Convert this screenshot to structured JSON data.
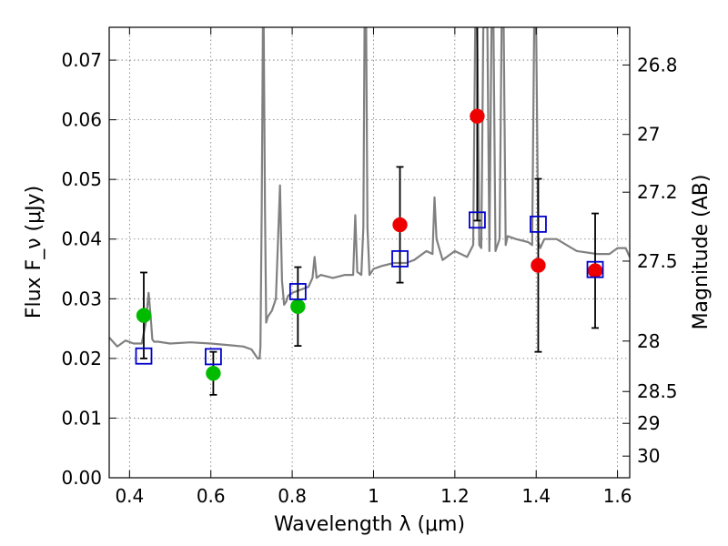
{
  "chart_data": {
    "type": "scatter",
    "title": "",
    "xlabel": "Wavelength λ (μm)",
    "ylabel": "Flux F_ν (μJy)",
    "y2label": "Magnitude (AB)",
    "xlim": [
      0.35,
      1.63
    ],
    "ylim": [
      0.0,
      0.0755
    ],
    "xticks": [
      {
        "value": 0.4,
        "label": "0.4"
      },
      {
        "value": 0.6,
        "label": "0.6"
      },
      {
        "value": 0.8,
        "label": "0.8"
      },
      {
        "value": 1.0,
        "label": "1"
      },
      {
        "value": 1.2,
        "label": "1.2"
      },
      {
        "value": 1.4,
        "label": "1.4"
      },
      {
        "value": 1.6,
        "label": "1.6"
      }
    ],
    "yticks": [
      {
        "value": 0.0,
        "label": "0.00"
      },
      {
        "value": 0.01,
        "label": "0.01"
      },
      {
        "value": 0.02,
        "label": "0.02"
      },
      {
        "value": 0.03,
        "label": "0.03"
      },
      {
        "value": 0.04,
        "label": "0.04"
      },
      {
        "value": 0.05,
        "label": "0.05"
      },
      {
        "value": 0.06,
        "label": "0.06"
      },
      {
        "value": 0.07,
        "label": "0.07"
      }
    ],
    "y2ticks": [
      {
        "mag": 26.8,
        "label": "26.8"
      },
      {
        "mag": 27.0,
        "label": "27"
      },
      {
        "mag": 27.2,
        "label": "27.2"
      },
      {
        "mag": 27.5,
        "label": "27.5"
      },
      {
        "mag": 28.0,
        "label": "28"
      },
      {
        "mag": 28.5,
        "label": "28.5"
      },
      {
        "mag": 29.0,
        "label": "29"
      },
      {
        "mag": 30.0,
        "label": "30"
      }
    ],
    "grid": true,
    "colors": {
      "spectrum": "#808080",
      "green": "#00bb00",
      "red": "#ee0000",
      "model": "#0000cc",
      "errorbar": "#000000"
    },
    "spectrum": {
      "x": [
        0.35,
        0.37,
        0.39,
        0.41,
        0.43,
        0.44,
        0.447,
        0.452,
        0.456,
        0.46,
        0.47,
        0.5,
        0.55,
        0.6,
        0.65,
        0.68,
        0.7,
        0.715,
        0.72,
        0.722,
        0.725,
        0.728,
        0.73,
        0.733,
        0.736,
        0.74,
        0.75,
        0.76,
        0.77,
        0.775,
        0.78,
        0.785,
        0.79,
        0.8,
        0.82,
        0.84,
        0.85,
        0.855,
        0.86,
        0.87,
        0.9,
        0.93,
        0.95,
        0.955,
        0.96,
        0.97,
        0.975,
        0.978,
        0.982,
        0.985,
        0.99,
        1.0,
        1.02,
        1.05,
        1.08,
        1.1,
        1.13,
        1.145,
        1.15,
        1.155,
        1.17,
        1.2,
        1.23,
        1.245,
        1.25,
        1.255,
        1.26,
        1.265,
        1.27,
        1.28,
        1.285,
        1.29,
        1.295,
        1.3,
        1.31,
        1.315,
        1.32,
        1.325,
        1.33,
        1.35,
        1.38,
        1.39,
        1.395,
        1.4,
        1.405,
        1.41,
        1.42,
        1.45,
        1.5,
        1.55,
        1.58,
        1.6,
        1.62,
        1.63
      ],
      "y": [
        0.0235,
        0.022,
        0.023,
        0.0225,
        0.0225,
        0.026,
        0.031,
        0.027,
        0.0232,
        0.0228,
        0.0228,
        0.0225,
        0.0227,
        0.0225,
        0.0222,
        0.022,
        0.0215,
        0.02,
        0.02,
        0.022,
        0.045,
        0.0755,
        0.0755,
        0.045,
        0.026,
        0.027,
        0.028,
        0.03,
        0.049,
        0.033,
        0.029,
        0.0295,
        0.0305,
        0.031,
        0.0315,
        0.032,
        0.0335,
        0.037,
        0.0335,
        0.034,
        0.0335,
        0.034,
        0.034,
        0.044,
        0.0345,
        0.034,
        0.042,
        0.0755,
        0.0755,
        0.042,
        0.034,
        0.035,
        0.0355,
        0.036,
        0.036,
        0.0365,
        0.038,
        0.0375,
        0.047,
        0.04,
        0.0365,
        0.038,
        0.037,
        0.039,
        0.0755,
        0.0755,
        0.039,
        0.0385,
        0.0755,
        0.0755,
        0.038,
        0.0755,
        0.0755,
        0.038,
        0.04,
        0.0755,
        0.0755,
        0.039,
        0.0405,
        0.04,
        0.0395,
        0.039,
        0.0755,
        0.0755,
        0.0395,
        0.0385,
        0.04,
        0.04,
        0.038,
        0.0375,
        0.0375,
        0.0385,
        0.0385,
        0.037
      ]
    },
    "series": [
      {
        "marker": "green-circle",
        "points": [
          {
            "x": 0.435,
            "y": 0.0272,
            "err": 0.0072
          },
          {
            "x": 0.606,
            "y": 0.0175,
            "err": 0.0036
          },
          {
            "x": 0.814,
            "y": 0.0287,
            "err": 0.0066
          }
        ]
      },
      {
        "marker": "red-circle",
        "points": [
          {
            "x": 1.065,
            "y": 0.0424,
            "err": 0.0097
          },
          {
            "x": 1.255,
            "y": 0.0606,
            "err": 0.0175
          },
          {
            "x": 1.405,
            "y": 0.0356,
            "err": 0.0145
          },
          {
            "x": 1.545,
            "y": 0.0347,
            "err": 0.0096
          }
        ]
      },
      {
        "marker": "blue-square",
        "points": [
          {
            "x": 0.435,
            "y": 0.0204
          },
          {
            "x": 0.606,
            "y": 0.0203
          },
          {
            "x": 0.814,
            "y": 0.0312
          },
          {
            "x": 1.065,
            "y": 0.0367
          },
          {
            "x": 1.255,
            "y": 0.0432
          },
          {
            "x": 1.405,
            "y": 0.0425
          },
          {
            "x": 1.545,
            "y": 0.0349
          }
        ]
      }
    ]
  }
}
